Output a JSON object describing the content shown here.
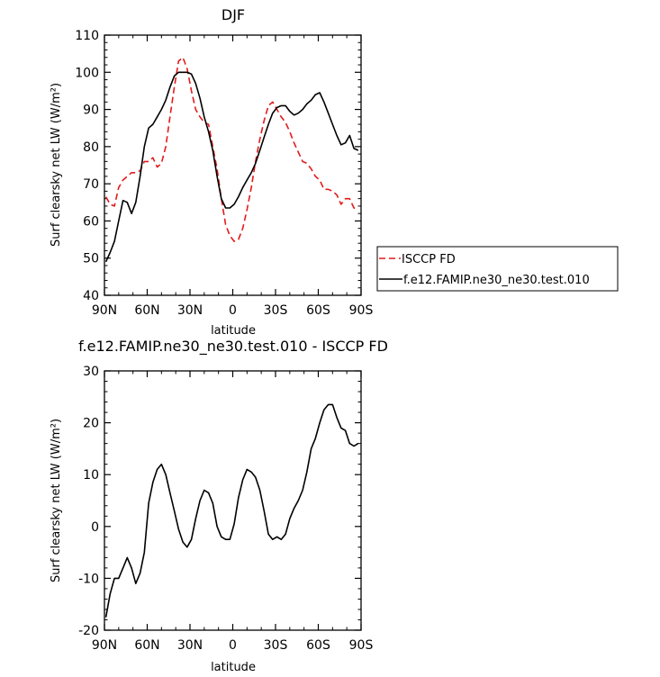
{
  "chart_data": [
    {
      "type": "line",
      "title": "DJF",
      "xlabel": "latitude",
      "ylabel": "Surf clearsky net LW (W/m²)",
      "ylim": [
        40,
        110
      ],
      "yticks": [
        "40",
        "50",
        "60",
        "70",
        "80",
        "90",
        "100",
        "110"
      ],
      "xlim": [
        90,
        -90
      ],
      "xtick_values": [
        90,
        60,
        30,
        0,
        -30,
        -60,
        -90
      ],
      "xticks": [
        "90N",
        "60N",
        "30N",
        "0",
        "30S",
        "60S",
        "90S"
      ],
      "legend": {
        "placement": "right"
      },
      "series": [
        {
          "name": "ISCCP FD",
          "color": "#e41a1c",
          "dash": "dashed",
          "x": [
            89,
            86,
            83,
            80,
            77,
            74,
            71,
            68,
            65,
            62,
            59,
            56,
            53,
            50,
            47,
            44,
            41,
            38,
            35,
            32,
            29,
            26,
            23,
            20,
            17,
            14,
            11,
            8,
            5,
            2,
            -1,
            -4,
            -7,
            -10,
            -13,
            -16,
            -19,
            -22,
            -25,
            -28,
            -31,
            -34,
            -37,
            -40,
            -43,
            -46,
            -49,
            -52,
            -55,
            -58,
            -61,
            -64,
            -67,
            -70,
            -73,
            -76,
            -79,
            -82,
            -85,
            -88
          ],
          "y": [
            66.5,
            64.5,
            64,
            69,
            71,
            72,
            73,
            73,
            73.5,
            76,
            76,
            77,
            74.5,
            75.5,
            80,
            88,
            96,
            103,
            104,
            101,
            95,
            90,
            88,
            86.5,
            86,
            80,
            74,
            66,
            59,
            56,
            54.5,
            55,
            58,
            63,
            69,
            76,
            82,
            87,
            91,
            92,
            90,
            88,
            86.5,
            84,
            81,
            78.5,
            76,
            75.5,
            74,
            72,
            71,
            68.5,
            68.5,
            68,
            67,
            64.5,
            66,
            66,
            63.5,
            63
          ]
        },
        {
          "name": "f.e12.FAMIP.ne30_ne30.test.010",
          "color": "#000000",
          "dash": "solid",
          "x": [
            89,
            86,
            83,
            80,
            77,
            74,
            71,
            68,
            65,
            62,
            59,
            56,
            53,
            50,
            47,
            44,
            41,
            38,
            35,
            32,
            29,
            26,
            23,
            20,
            17,
            14,
            11,
            8,
            5,
            2,
            -1,
            -4,
            -7,
            -10,
            -13,
            -16,
            -19,
            -22,
            -25,
            -28,
            -31,
            -34,
            -37,
            -40,
            -43,
            -46,
            -49,
            -52,
            -55,
            -58,
            -61,
            -64,
            -67,
            -70,
            -73,
            -76,
            -79,
            -82,
            -85,
            -88
          ],
          "y": [
            49,
            51.5,
            54.5,
            60,
            65.5,
            65,
            62,
            65,
            72,
            80,
            85,
            86,
            88,
            90,
            92.5,
            96,
            99,
            100,
            100,
            100,
            99.5,
            97,
            93,
            88,
            84,
            79,
            72,
            66,
            63.5,
            63.5,
            64.5,
            66.5,
            69,
            71,
            73,
            75.5,
            79,
            82.5,
            86,
            89,
            90.5,
            91,
            91,
            89.5,
            88.5,
            89,
            90,
            91.5,
            92.5,
            94,
            94.5,
            92,
            89,
            86,
            83,
            80.5,
            81,
            83,
            79.5,
            79
          ]
        }
      ]
    },
    {
      "type": "line",
      "title": "f.e12.FAMIP.ne30_ne30.test.010 - ISCCP FD",
      "xlabel": "latitude",
      "ylabel": "Surf clearsky net LW (W/m²)",
      "ylim": [
        -20,
        30
      ],
      "yticks": [
        "-20",
        "-10",
        "0",
        "10",
        "20",
        "30"
      ],
      "xlim": [
        90,
        -90
      ],
      "xtick_values": [
        90,
        60,
        30,
        0,
        -30,
        -60,
        -90
      ],
      "xticks": [
        "90N",
        "60N",
        "30N",
        "0",
        "30S",
        "60S",
        "90S"
      ],
      "series": [
        {
          "color": "#000000",
          "dash": "solid",
          "x": [
            89,
            86,
            83,
            80,
            77,
            74,
            71,
            68,
            65,
            62,
            59,
            56,
            53,
            50,
            47,
            44,
            41,
            38,
            35,
            32,
            29,
            26,
            23,
            20,
            17,
            14,
            11,
            8,
            5,
            2,
            -1,
            -4,
            -7,
            -10,
            -13,
            -16,
            -19,
            -22,
            -25,
            -28,
            -31,
            -34,
            -37,
            -40,
            -43,
            -46,
            -49,
            -52,
            -55,
            -58,
            -61,
            -64,
            -67,
            -70,
            -73,
            -76,
            -79,
            -82,
            -85,
            -88
          ],
          "y": [
            -17.5,
            -13,
            -10,
            -10,
            -8,
            -6,
            -8,
            -11,
            -9,
            -5,
            4.5,
            8.5,
            11,
            12,
            10,
            6.5,
            3,
            -0.5,
            -3,
            -4,
            -2.5,
            1.5,
            5,
            7,
            6.5,
            4.5,
            0,
            -2,
            -2.5,
            -2.5,
            0.5,
            5.5,
            9,
            11,
            10.5,
            9.5,
            7,
            3,
            -1.5,
            -2.5,
            -2,
            -2.5,
            -1.5,
            1.5,
            3.5,
            5,
            7,
            10.5,
            15,
            17,
            20,
            22.5,
            23.5,
            23.5,
            21,
            19,
            18.5,
            16,
            15.5,
            16
          ]
        }
      ]
    }
  ]
}
